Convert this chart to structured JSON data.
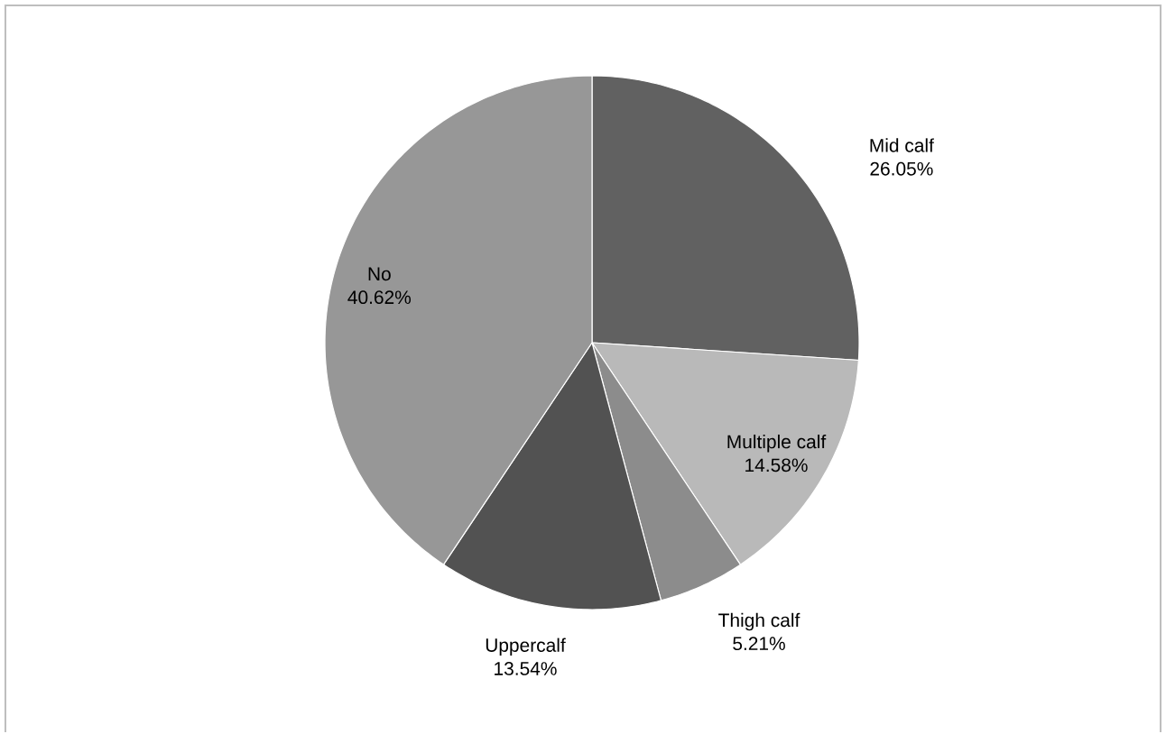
{
  "chart_data": {
    "type": "pie",
    "categories": [
      "Mid calf",
      "Multiple calf",
      "Thigh calf",
      "Uppercalf",
      "No"
    ],
    "values": [
      26.05,
      14.58,
      5.21,
      13.54,
      40.62
    ],
    "value_labels": [
      "26.05%",
      "14.58%",
      "5.21%",
      "13.54%",
      "40.62%"
    ],
    "colors": [
      "#616161",
      "#b9b9b9",
      "#8c8c8c",
      "#525252",
      "#979797"
    ]
  }
}
